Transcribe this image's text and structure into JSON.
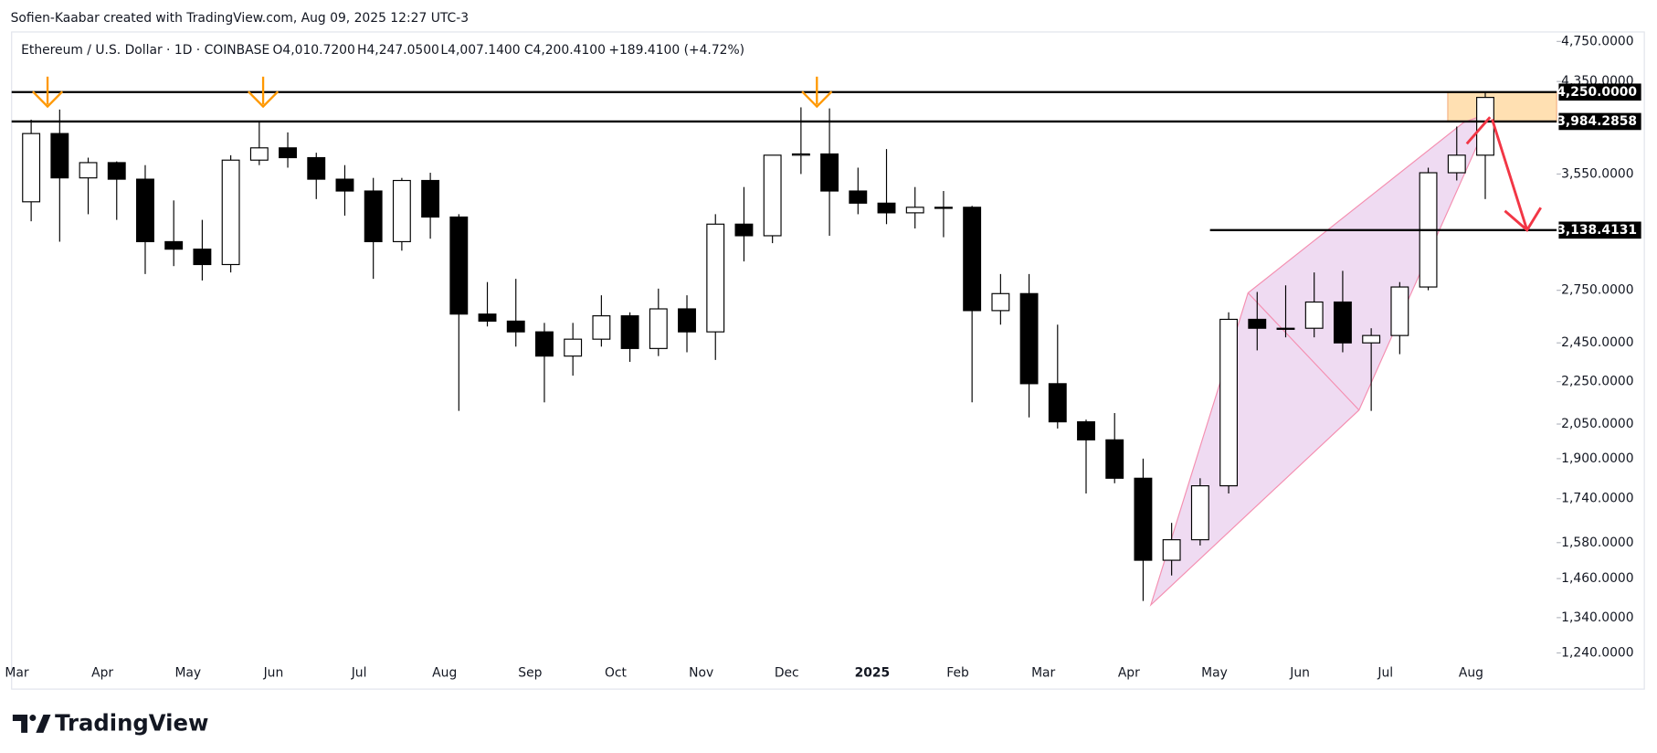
{
  "header": {
    "credit": "Sofien-Kaabar created with TradingView.com, Aug 09, 2025 12:27 UTC-3",
    "symbol": "Ethereum / U.S. Dollar · 1D · COINBASE",
    "open": "O4,010.7200",
    "high": "H4,247.0500",
    "low": "L4,007.1400",
    "close": "C4,200.4100",
    "change": "+189.4100 (+4.72%)"
  },
  "chart_data": {
    "type": "candlestick",
    "categories": [
      "Mar",
      null,
      null,
      "Apr",
      null,
      null,
      "May",
      null,
      null,
      "Jun",
      null,
      null,
      "Jul",
      null,
      null,
      "Aug",
      null,
      null,
      "Sep",
      null,
      null,
      "Oct",
      null,
      null,
      "Nov",
      null,
      null,
      "Dec",
      null,
      null,
      "2025",
      null,
      null,
      "Feb",
      null,
      null,
      "Mar",
      null,
      null,
      "Apr",
      null,
      null,
      "May",
      null,
      null,
      "Jun",
      null,
      null,
      "Jul",
      null,
      null,
      "Aug"
    ],
    "open": [
      3340,
      3880,
      3520,
      3640,
      3510,
      3060,
      3010,
      2910,
      3660,
      3760,
      3680,
      3510,
      3420,
      3060,
      3500,
      3230,
      2610,
      2570,
      2510,
      2380,
      2470,
      2600,
      2420,
      2640,
      2510,
      3180,
      3100,
      3700,
      3710,
      3420,
      3330,
      3260,
      3300,
      3300,
      2630,
      2730,
      2240,
      2060,
      1980,
      1820,
      1520,
      1590,
      1790,
      2580,
      2530,
      2530,
      2680,
      2450,
      2490,
      2770,
      3560,
      3700
    ],
    "high": [
      4000,
      4090,
      3680,
      3650,
      3620,
      3350,
      3210,
      3700,
      3980,
      3890,
      3720,
      3620,
      3520,
      3520,
      3560,
      3250,
      2800,
      2820,
      2560,
      2560,
      2720,
      2620,
      2760,
      2720,
      3250,
      3450,
      3700,
      4110,
      4100,
      3600,
      3750,
      3450,
      3420,
      3310,
      2850,
      2850,
      2550,
      2070,
      2100,
      1900,
      1650,
      1820,
      2620,
      2740,
      2780,
      2860,
      2870,
      2530,
      2800,
      3600,
      3940,
      4247.05
    ],
    "low": [
      3200,
      3060,
      3250,
      3210,
      2850,
      2900,
      2810,
      2860,
      3620,
      3600,
      3360,
      3240,
      2820,
      3000,
      3080,
      2110,
      2540,
      2430,
      2150,
      2280,
      2430,
      2350,
      2380,
      2400,
      2360,
      2930,
      3050,
      3550,
      3100,
      3250,
      3180,
      3150,
      3090,
      2150,
      2550,
      2080,
      2030,
      1760,
      1800,
      1390,
      1470,
      1570,
      1760,
      2410,
      2480,
      2480,
      2400,
      2110,
      2390,
      2750,
      3500,
      3360
    ],
    "close": [
      3880,
      3520,
      3640,
      3510,
      3060,
      3010,
      2910,
      3660,
      3760,
      3680,
      3510,
      3420,
      3060,
      3500,
      3230,
      2610,
      2570,
      2510,
      2380,
      2470,
      2600,
      2420,
      2640,
      2510,
      3180,
      3100,
      3700,
      3710,
      3420,
      3330,
      3260,
      3300,
      3300,
      2630,
      2730,
      2240,
      2060,
      1980,
      1820,
      1520,
      1590,
      1790,
      2580,
      2530,
      2530,
      2680,
      2450,
      2490,
      2770,
      3560,
      3700,
      4200.41
    ],
    "up_color": "#ffffff",
    "down_color": "#000000",
    "log_scale": true,
    "ylim": [
      1220,
      4850
    ],
    "yticks": [
      {
        "value": 1240,
        "label": "1,240.0000"
      },
      {
        "value": 1340,
        "label": "1,340.0000"
      },
      {
        "value": 1460,
        "label": "1,460.0000"
      },
      {
        "value": 1580,
        "label": "1,580.0000"
      },
      {
        "value": 1740,
        "label": "1,740.0000"
      },
      {
        "value": 1900,
        "label": "1,900.0000"
      },
      {
        "value": 2050,
        "label": "2,050.0000"
      },
      {
        "value": 2250,
        "label": "2,250.0000"
      },
      {
        "value": 2450,
        "label": "2,450.0000"
      },
      {
        "value": 2750,
        "label": "2,750.0000"
      },
      {
        "value": 3550,
        "label": "3,550.0000"
      },
      {
        "value": 4350,
        "label": "4,350.0000"
      },
      {
        "value": 4750,
        "label": "4,750.0000"
      }
    ],
    "levels": [
      {
        "value": 4250,
        "label": "4,250.0000"
      },
      {
        "value": 3984.2858,
        "label": "3,984.2858"
      },
      {
        "value": 3138.4131,
        "label": "3,138.4131"
      }
    ],
    "zone_color": "#ffe0b2",
    "pattern_color": "#e1bee7"
  },
  "footer": {
    "brand": "TradingView"
  }
}
